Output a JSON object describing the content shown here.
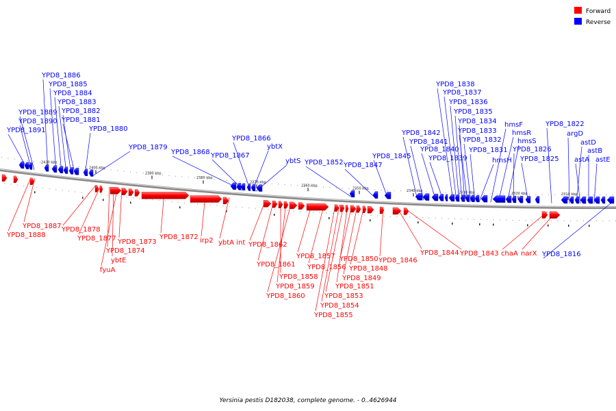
{
  "caption": "Yersinia pestis D182038, complete genome. - 0..4626944",
  "legend": [
    {
      "label": "Forward",
      "color": "#ff0000"
    },
    {
      "label": "Reverse",
      "color": "#0000ff"
    }
  ],
  "ticks": [
    "2410 kbp",
    "2400 kbp",
    "2390 kbp",
    "2380 kbp",
    "2370 kbp",
    "2360 kbp",
    "2350 kbp",
    "2340 kbp",
    "2330 kbp",
    "2320 kbp",
    "2310 kbp"
  ],
  "reverse_labels": [
    "YPD8_1891",
    "YPD8_1890",
    "YPD8_1889",
    "YPD8_1886",
    "YPD8_1885",
    "YPD8_1884",
    "YPD8_1883",
    "YPD8_1882",
    "YPD8_1881",
    "YPD8_1880",
    "YPD8_1879",
    "YPD8_1868",
    "YPD8_1867",
    "YPD8_1866",
    "ybtX",
    "ybtS",
    "YPD8_1852",
    "YPD8_1847",
    "YPD8_1845",
    "YPD8_1842",
    "YPD8_1841",
    "YPD8_1840",
    "YPD8_1839",
    "YPD8_1838",
    "YPD8_1837",
    "YPD8_1836",
    "YPD8_1835",
    "YPD8_1834",
    "YPD8_1833",
    "YPD8_1832",
    "YPD8_1831",
    "hmsH",
    "hmsF",
    "hmsR",
    "hmsS",
    "YPD8_1826",
    "YPD8_1825",
    "YPD8_1822",
    "argD",
    "astD",
    "astA",
    "astB",
    "astE",
    "YPD8_1816"
  ],
  "forward_labels": [
    "YPD8_1888",
    "YPD8_1887",
    "YPD8_1878",
    "YPD8_1877",
    "YPD8_1874",
    "ybtE",
    "fyuA",
    "YPD8_1873",
    "YPD8_1872",
    "irp2",
    "ybtA int",
    "YPD8_1862",
    "YPD8_1861",
    "YPD8_1858",
    "YPD8_1859",
    "YPD8_1860",
    "YPD8_1857",
    "YPD8_1856",
    "YPD8_1855",
    "YPD8_1854",
    "YPD8_1853",
    "YPD8_1851",
    "YPD8_1850",
    "YPD8_1849",
    "YPD8_1848",
    "YPD8_1846",
    "YPD8_1844",
    "YPD8_1843",
    "chaA",
    "narX"
  ]
}
